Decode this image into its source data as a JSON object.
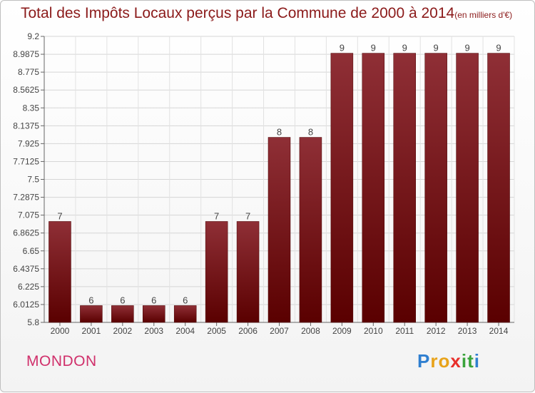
{
  "title": "Total des Impôts Locaux perçus par la Commune de 2000 à 2014",
  "unit": "(en milliers d'€)",
  "commune": "MONDON",
  "logo": {
    "p": "P",
    "r": "r",
    "o": "o",
    "x": "x",
    "i1": "i",
    "t": "t",
    "i2": "i"
  },
  "colors": {
    "bar_dark": "#5a0000",
    "bar_light": "#8f2f36",
    "title": "#8b1a1a",
    "commune": "#d0306b"
  },
  "chart_data": {
    "type": "bar",
    "title": "Total des Impôts Locaux perçus par la Commune de 2000 à 2014",
    "xlabel": "",
    "ylabel": "",
    "categories": [
      "2000",
      "2001",
      "2002",
      "2003",
      "2004",
      "2005",
      "2006",
      "2007",
      "2008",
      "2009",
      "2010",
      "2011",
      "2012",
      "2013",
      "2014"
    ],
    "values": [
      7,
      6,
      6,
      6,
      6,
      7,
      7,
      8,
      8,
      9,
      9,
      9,
      9,
      9,
      9
    ],
    "data_labels": [
      "7",
      "6",
      "6",
      "6",
      "6",
      "7",
      "7",
      "8",
      "8",
      "9",
      "9",
      "9",
      "9",
      "9",
      "9"
    ],
    "ylim": [
      5.8,
      9.2
    ],
    "yticks": [
      "5.8",
      "6.0125",
      "6.225",
      "6.4375",
      "6.65",
      "6.8625",
      "7.075",
      "7.2875",
      "7.5",
      "7.7125",
      "7.925",
      "8.1375",
      "8.35",
      "8.5625",
      "8.775",
      "8.9875",
      "9.2"
    ],
    "grid": true
  }
}
